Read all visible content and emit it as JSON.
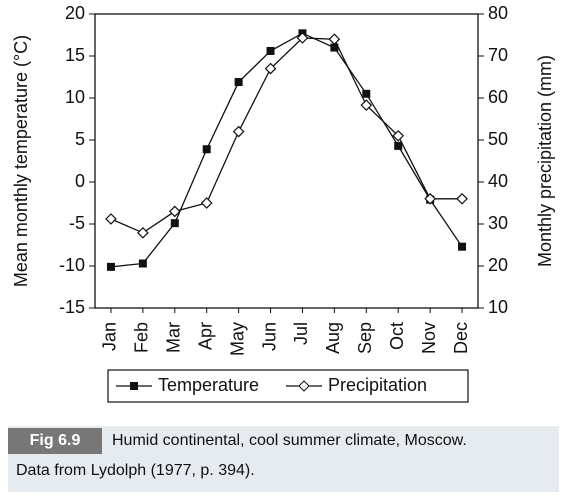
{
  "chart_data": {
    "type": "line",
    "categories": [
      "Jan",
      "Feb",
      "Mar",
      "Apr",
      "May",
      "Jun",
      "Jul",
      "Aug",
      "Sep",
      "Oct",
      "Nov",
      "Dec"
    ],
    "series": [
      {
        "name": "Temperature",
        "color": "#111111",
        "marker": "square",
        "values": [
          -10.1,
          -9.7,
          -4.9,
          3.9,
          11.9,
          15.6,
          17.7,
          16,
          10.5,
          4.3,
          -2.1,
          -7.7
        ]
      },
      {
        "name": "Precipitation",
        "color": "#111111",
        "marker": "diamond",
        "axis": "y2",
        "values": [
          31.2,
          27.9,
          33,
          35,
          52,
          67,
          74.3,
          74,
          58.3,
          51,
          36,
          36
        ]
      }
    ],
    "ylabel": "Mean monthly temperature (°C)",
    "y2label": "Monthly precipitation (mm)",
    "ylim": [
      -15,
      20
    ],
    "yticks": [
      -15,
      -10,
      -5,
      0,
      5,
      10,
      15,
      20
    ],
    "y2lim": [
      10,
      80
    ],
    "y2ticks": [
      10,
      20,
      30,
      40,
      50,
      60,
      70,
      80
    ],
    "legend": "bottom"
  },
  "caption": {
    "label": "Fig 6.9",
    "lines": [
      "Humid continental, cool summer climate, Moscow.",
      "Data from Lydolph (1977, p. 394)."
    ]
  }
}
